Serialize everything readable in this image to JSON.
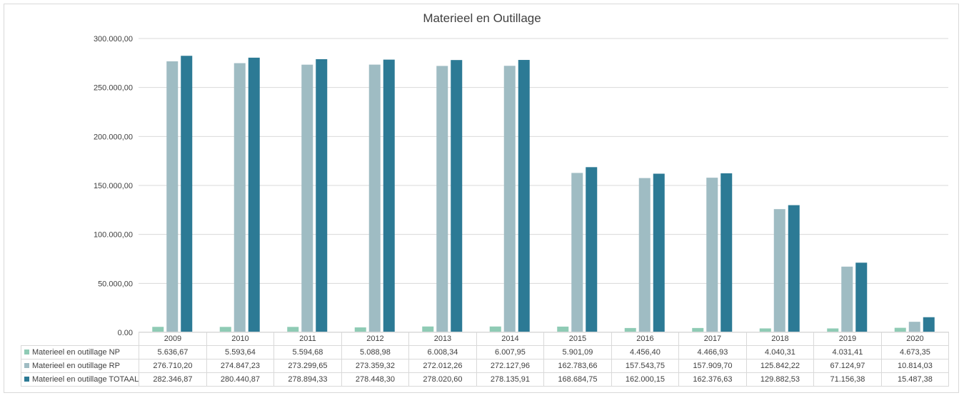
{
  "colors": {
    "np": "#8fcbb5",
    "rp": "#9fbcc3",
    "totaal": "#2c7a95",
    "grid": "#d9d9d9",
    "text": "#404040"
  },
  "chart_data": {
    "type": "bar",
    "title": "Materieel en Outillage",
    "categories": [
      "2009",
      "2010",
      "2011",
      "2012",
      "2013",
      "2014",
      "2015",
      "2016",
      "2017",
      "2018",
      "2019",
      "2020"
    ],
    "ylim": [
      0,
      300000
    ],
    "yticks": [
      "0,00",
      "50.000,00",
      "100.000,00",
      "150.000,00",
      "200.000,00",
      "250.000,00",
      "300.000,00"
    ],
    "grid": true,
    "legend": "data-table-below",
    "series": [
      {
        "name": "Materieel en outillage NP",
        "values": [
          5636.67,
          5593.64,
          5594.68,
          5088.98,
          6008.34,
          6007.95,
          5901.09,
          4456.4,
          4466.93,
          4040.31,
          4031.41,
          4673.35
        ],
        "labels": [
          "5.636,67",
          "5.593,64",
          "5.594,68",
          "5.088,98",
          "6.008,34",
          "6.007,95",
          "5.901,09",
          "4.456,40",
          "4.466,93",
          "4.040,31",
          "4.031,41",
          "4.673,35"
        ]
      },
      {
        "name": "Materieel en outillage RP",
        "values": [
          276710.2,
          274847.23,
          273299.65,
          273359.32,
          272012.26,
          272127.96,
          162783.66,
          157543.75,
          157909.7,
          125842.22,
          67124.97,
          10814.03
        ],
        "labels": [
          "276.710,20",
          "274.847,23",
          "273.299,65",
          "273.359,32",
          "272.012,26",
          "272.127,96",
          "162.783,66",
          "157.543,75",
          "157.909,70",
          "125.842,22",
          "67.124,97",
          "10.814,03"
        ]
      },
      {
        "name": "Materieel en outillage TOTAAL",
        "values": [
          282346.87,
          280440.87,
          278894.33,
          278448.3,
          278020.6,
          278135.91,
          168684.75,
          162000.15,
          162376.63,
          129882.53,
          71156.38,
          15487.38
        ],
        "labels": [
          "282.346,87",
          "280.440,87",
          "278.894,33",
          "278.448,30",
          "278.020,60",
          "278.135,91",
          "168.684,75",
          "162.000,15",
          "162.376,63",
          "129.882,53",
          "71.156,38",
          "15.487,38"
        ]
      }
    ]
  }
}
